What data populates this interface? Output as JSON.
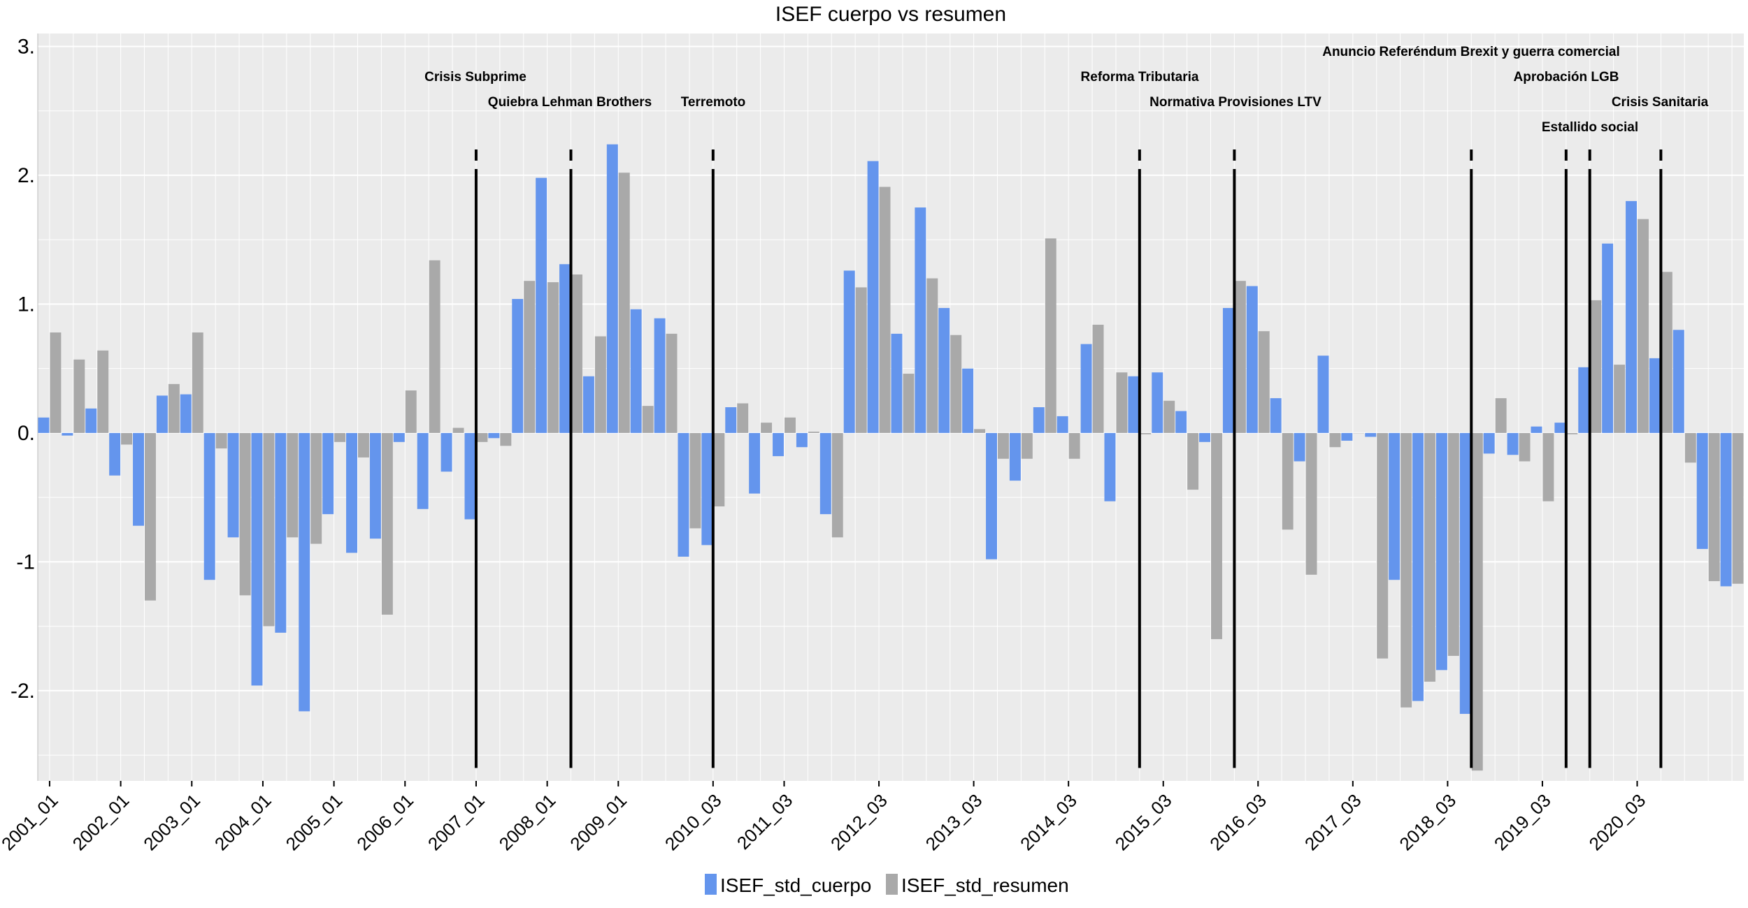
{
  "chart_data": {
    "type": "bar",
    "title": "ISEF cuerpo vs resumen",
    "xlabel": "",
    "ylabel": "",
    "ylim": [
      -2.7,
      3.1
    ],
    "yticks": [
      -2,
      -1,
      0,
      1,
      2,
      3
    ],
    "ytick_labels": [
      "-2.",
      "-1",
      "0.",
      "1.",
      "2.",
      "3."
    ],
    "start": {
      "year": 2001,
      "quarter": 1
    },
    "xtick_labels": [
      "2001_01",
      "2002_01",
      "2003_01",
      "2004_01",
      "2005_01",
      "2006_01",
      "2007_01",
      "2008_01",
      "2009_01",
      "2010_03",
      "2011_03",
      "2012_03",
      "2013_03",
      "2014_03",
      "2015_03",
      "2016_03",
      "2017_03",
      "2018_03",
      "2019_03",
      "2020_03"
    ],
    "xtick_positions": [
      0,
      3,
      6,
      9,
      12,
      15,
      18,
      21,
      24,
      28,
      31,
      35,
      39,
      43,
      47,
      51,
      55,
      59,
      63,
      67
    ],
    "series": [
      {
        "name": "ISEF_std_cuerpo",
        "color": "#6495ED",
        "values": [
          0.12,
          -0.02,
          0.19,
          -0.33,
          -0.72,
          0.29,
          0.3,
          -1.14,
          -0.81,
          -1.96,
          -1.55,
          -2.16,
          -0.63,
          -0.93,
          -0.82,
          -0.07,
          -0.59,
          -0.3,
          -0.67,
          -0.04,
          1.04,
          1.98,
          1.31,
          0.44,
          2.24,
          0.96,
          0.89,
          -0.96,
          -0.87,
          0.2,
          -0.47,
          -0.18,
          -0.11,
          -0.63,
          1.26,
          2.11,
          0.77,
          1.75,
          0.97,
          0.5,
          -0.98,
          -0.37,
          0.2,
          0.13,
          0.69,
          -0.53,
          0.44,
          0.47,
          0.17,
          -0.07,
          0.97,
          1.14,
          0.27,
          -0.22,
          0.6,
          -0.06,
          -0.03,
          -1.14,
          -2.08,
          -1.84,
          -2.18,
          -0.16,
          -0.17,
          0.05,
          0.08,
          0.51,
          1.47,
          1.8,
          0.58,
          0.8,
          -0.9,
          -1.19
        ]
      },
      {
        "name": "ISEF_std_resumen",
        "color": "#A9A9A9",
        "values": [
          0.78,
          0.57,
          0.64,
          -0.09,
          -1.3,
          0.38,
          0.78,
          -0.12,
          -1.26,
          -1.5,
          -0.81,
          -0.86,
          -0.07,
          -0.19,
          -1.41,
          0.33,
          1.34,
          0.04,
          -0.07,
          -0.1,
          1.18,
          1.17,
          1.23,
          0.75,
          2.02,
          0.21,
          0.77,
          -0.74,
          -0.57,
          0.23,
          0.08,
          0.12,
          0.01,
          -0.81,
          1.13,
          1.91,
          0.46,
          1.2,
          0.76,
          0.03,
          -0.2,
          -0.2,
          1.51,
          -0.2,
          0.84,
          0.47,
          -0.01,
          0.25,
          -0.44,
          -1.6,
          1.18,
          0.79,
          -0.75,
          -1.1,
          -0.11,
          0.0,
          -1.75,
          -2.13,
          -1.93,
          -1.73,
          -2.62,
          0.27,
          -0.22,
          -0.53,
          -0.01,
          1.03,
          0.53,
          1.66,
          1.25,
          -0.23,
          -1.15,
          -1.17
        ]
      }
    ],
    "events": [
      {
        "label": "Crisis Subprime",
        "x": 18
      },
      {
        "label": "Quiebra Lehman Brothers",
        "x": 22
      },
      {
        "label": "Terremoto",
        "x": 28
      },
      {
        "label": "Reforma Tributaria",
        "x": 46
      },
      {
        "label": "Normativa Provisiones LTV",
        "x": 50
      },
      {
        "label": "Anuncio Referéndum Brexit y guerra comercial",
        "x": 60
      },
      {
        "label": "Estallido social",
        "x": 64
      },
      {
        "label": "Aprobación LGB",
        "x": 65
      },
      {
        "label": "Crisis Sanitaria",
        "x": 68
      }
    ],
    "grid": true,
    "legend_position": "bottom"
  }
}
